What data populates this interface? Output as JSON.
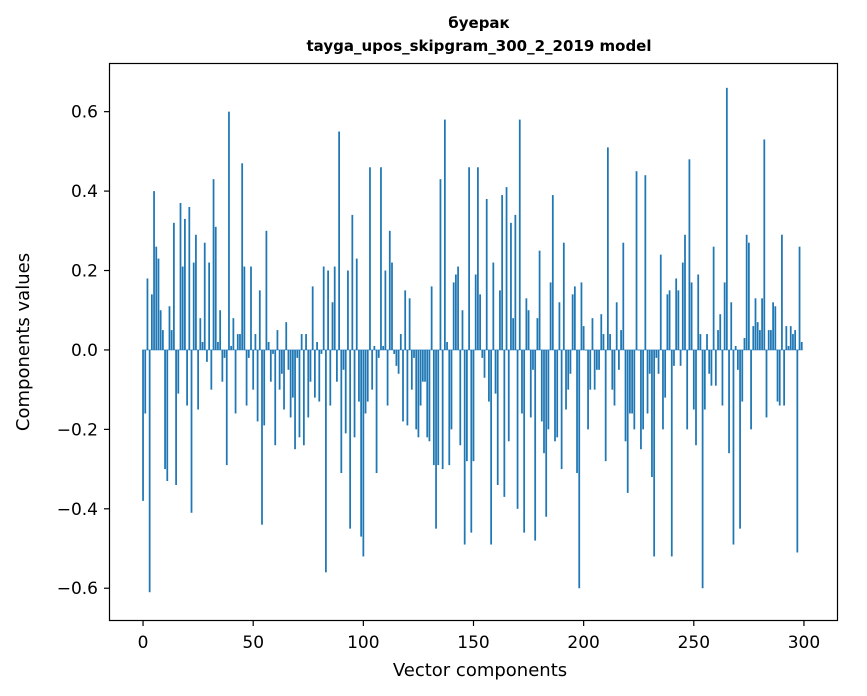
{
  "chart_data": {
    "type": "bar",
    "title": "буерак",
    "subtitle": "tayga_upos_skipgram_300_2_2019 model",
    "xlabel": "Vector components",
    "ylabel": "Components values",
    "xlim": [
      -15,
      315
    ],
    "ylim": [
      -0.68,
      0.72
    ],
    "xticks": [
      0,
      50,
      100,
      150,
      200,
      250,
      300
    ],
    "yticks": [
      -0.6,
      -0.4,
      -0.2,
      0.0,
      0.2,
      0.4,
      0.6
    ],
    "xtick_labels": [
      "0",
      "50",
      "100",
      "150",
      "200",
      "250",
      "300"
    ],
    "ytick_labels": [
      "−0.6",
      "−0.4",
      "−0.2",
      "0.0",
      "0.2",
      "0.4",
      "0.6"
    ],
    "grid": false,
    "bar_color": "#1f77b4",
    "x": [
      0,
      1,
      2,
      3,
      4,
      5,
      6,
      7,
      8,
      9,
      10,
      11,
      12,
      13,
      14,
      15,
      16,
      17,
      18,
      19,
      20,
      21,
      22,
      23,
      24,
      25,
      26,
      27,
      28,
      29,
      30,
      31,
      32,
      33,
      34,
      35,
      36,
      37,
      38,
      39,
      40,
      41,
      42,
      43,
      44,
      45,
      46,
      47,
      48,
      49,
      50,
      51,
      52,
      53,
      54,
      55,
      56,
      57,
      58,
      59,
      60,
      61,
      62,
      63,
      64,
      65,
      66,
      67,
      68,
      69,
      70,
      71,
      72,
      73,
      74,
      75,
      76,
      77,
      78,
      79,
      80,
      81,
      82,
      83,
      84,
      85,
      86,
      87,
      88,
      89,
      90,
      91,
      92,
      93,
      94,
      95,
      96,
      97,
      98,
      99,
      100,
      101,
      102,
      103,
      104,
      105,
      106,
      107,
      108,
      109,
      110,
      111,
      112,
      113,
      114,
      115,
      116,
      117,
      118,
      119,
      120,
      121,
      122,
      123,
      124,
      125,
      126,
      127,
      128,
      129,
      130,
      131,
      132,
      133,
      134,
      135,
      136,
      137,
      138,
      139,
      140,
      141,
      142,
      143,
      144,
      145,
      146,
      147,
      148,
      149,
      150,
      151,
      152,
      153,
      154,
      155,
      156,
      157,
      158,
      159,
      160,
      161,
      162,
      163,
      164,
      165,
      166,
      167,
      168,
      169,
      170,
      171,
      172,
      173,
      174,
      175,
      176,
      177,
      178,
      179,
      180,
      181,
      182,
      183,
      184,
      185,
      186,
      187,
      188,
      189,
      190,
      191,
      192,
      193,
      194,
      195,
      196,
      197,
      198,
      199,
      200,
      201,
      202,
      203,
      204,
      205,
      206,
      207,
      208,
      209,
      210,
      211,
      212,
      213,
      214,
      215,
      216,
      217,
      218,
      219,
      220,
      221,
      222,
      223,
      224,
      225,
      226,
      227,
      228,
      229,
      230,
      231,
      232,
      233,
      234,
      235,
      236,
      237,
      238,
      239,
      240,
      241,
      242,
      243,
      244,
      245,
      246,
      247,
      248,
      249,
      250,
      251,
      252,
      253,
      254,
      255,
      256,
      257,
      258,
      259,
      260,
      261,
      262,
      263,
      264,
      265,
      266,
      267,
      268,
      269,
      270,
      271,
      272,
      273,
      274,
      275,
      276,
      277,
      278,
      279,
      280,
      281,
      282,
      283,
      284,
      285,
      286,
      287,
      288,
      289,
      290,
      291,
      292,
      293,
      294,
      295,
      296,
      297,
      298,
      299
    ],
    "values": [
      -0.38,
      -0.16,
      0.18,
      -0.61,
      0.14,
      0.4,
      0.26,
      0.23,
      0.1,
      0.05,
      -0.3,
      -0.33,
      0.11,
      0.05,
      0.32,
      -0.34,
      -0.11,
      0.37,
      0.21,
      0.33,
      -0.14,
      0.36,
      -0.41,
      0.22,
      0.29,
      -0.15,
      0.08,
      0.02,
      0.27,
      -0.03,
      0.22,
      -0.1,
      0.43,
      0.31,
      0.02,
      0.1,
      -0.08,
      -0.02,
      -0.29,
      0.6,
      0.01,
      0.08,
      -0.16,
      0.04,
      0.04,
      0.47,
      0.21,
      -0.14,
      -0.02,
      0.21,
      -0.1,
      0.04,
      -0.18,
      0.15,
      -0.44,
      -0.19,
      0.3,
      0.02,
      -0.08,
      -0.01,
      -0.24,
      0.05,
      -0.1,
      -0.06,
      -0.15,
      0.07,
      -0.05,
      -0.17,
      -0.12,
      -0.25,
      -0.02,
      -0.22,
      0.04,
      -0.24,
      0.04,
      -0.17,
      -0.08,
      0.16,
      -0.12,
      0.02,
      -0.13,
      -0.01,
      0.21,
      -0.56,
      0.2,
      -0.14,
      0.12,
      0.21,
      -0.08,
      0.55,
      -0.31,
      -0.05,
      -0.21,
      0.2,
      -0.45,
      0.34,
      -0.22,
      0.23,
      -0.13,
      -0.47,
      -0.52,
      -0.16,
      -0.13,
      0.46,
      -0.1,
      0.01,
      -0.31,
      -0.02,
      0.46,
      0.01,
      0.2,
      -0.14,
      0.3,
      0.22,
      -0.01,
      -0.04,
      -0.06,
      0.04,
      -0.18,
      0.15,
      -0.19,
      0.13,
      -0.1,
      -0.02,
      -0.2,
      -0.22,
      -0.14,
      -0.08,
      -0.08,
      -0.22,
      -0.23,
      0.16,
      -0.29,
      -0.45,
      -0.29,
      0.43,
      -0.3,
      0.58,
      0.02,
      -0.29,
      -0.2,
      0.17,
      0.19,
      0.21,
      -0.24,
      0.1,
      -0.49,
      -0.28,
      0.46,
      -0.46,
      -0.28,
      0.19,
      0.46,
      0.14,
      -0.02,
      -0.07,
      0.38,
      -0.13,
      -0.49,
      0.22,
      -0.11,
      -0.34,
      0.15,
      0.39,
      -0.37,
      0.41,
      -0.23,
      0.32,
      0.08,
      0.34,
      -0.4,
      0.58,
      -0.16,
      -0.46,
      0.13,
      0.1,
      -0.17,
      -0.05,
      -0.48,
      0.08,
      0.25,
      -0.18,
      -0.26,
      -0.42,
      -0.2,
      0.17,
      0.39,
      -0.23,
      -0.22,
      0.12,
      -0.3,
      0.27,
      -0.15,
      -0.1,
      -0.06,
      0.14,
      0.16,
      -0.31,
      -0.6,
      0.17,
      0.06,
      0.0,
      -0.2,
      -0.1,
      0.08,
      -0.1,
      -0.05,
      -0.05,
      0.09,
      0.04,
      -0.28,
      0.51,
      0.04,
      -0.1,
      -0.14,
      0.12,
      -0.05,
      0.05,
      0.27,
      -0.23,
      -0.36,
      -0.16,
      -0.16,
      -0.2,
      0.45,
      0.0,
      -0.25,
      -0.2,
      0.44,
      -0.16,
      -0.06,
      -0.32,
      -0.52,
      -0.02,
      -0.06,
      0.24,
      -0.2,
      -0.12,
      0.14,
      0.15,
      -0.52,
      -0.04,
      0.18,
      0.15,
      -0.04,
      0.22,
      0.29,
      -0.2,
      0.48,
      0.17,
      -0.15,
      -0.24,
      0.19,
      0.04,
      -0.6,
      -0.15,
      0.04,
      -0.06,
      -0.09,
      0.26,
      -0.09,
      0.05,
      0.09,
      -0.14,
      0.17,
      0.66,
      -0.26,
      0.12,
      -0.49,
      0.01,
      -0.05,
      -0.45,
      -0.13,
      0.03,
      0.29,
      0.27,
      -0.2,
      0.06,
      0.13,
      0.07,
      0.05,
      0.13,
      0.53,
      -0.17,
      0.05,
      0.05,
      0.12,
      0.11,
      -0.13,
      -0.14,
      0.29,
      -0.14,
      0.06,
      0.01,
      0.06,
      0.04,
      0.05,
      -0.51,
      0.26,
      0.02
    ]
  }
}
